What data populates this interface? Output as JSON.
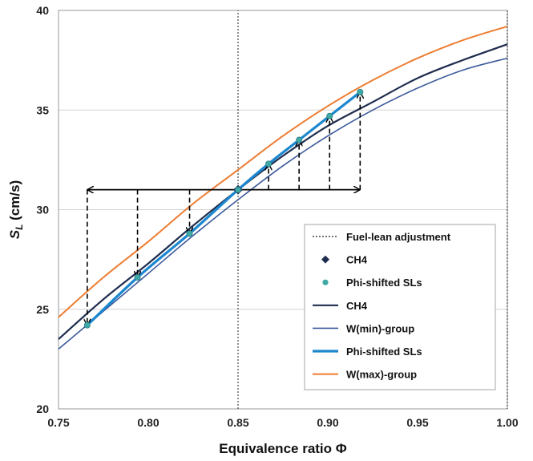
{
  "chart_data": {
    "type": "line",
    "xlabel": "Equivalence ratio Φ",
    "ylabel_main": "S",
    "ylabel_sub": "L",
    "ylabel_unit": " (cm/s)",
    "xlim": [
      0.75,
      1.0
    ],
    "ylim": [
      20,
      40
    ],
    "x_ticks": [
      "0.75",
      "0.80",
      "0.85",
      "0.90",
      "0.95",
      "1.00"
    ],
    "y_ticks": [
      "20",
      "25",
      "30",
      "35",
      "40"
    ],
    "grid": "horizontal",
    "legend_position": "inside-bottom-right",
    "series": [
      {
        "name": "Fuel-lean adjustment",
        "kind": "dotted-vline",
        "color": "#444444",
        "x": [
          0.85,
          0.85
        ],
        "y": [
          20,
          40
        ]
      },
      {
        "name": "CH4",
        "kind": "marker",
        "marker": "diamond",
        "color": "#1f2d4e",
        "x": [
          0.85
        ],
        "y": [
          31.0
        ]
      },
      {
        "name": "Phi-shifted SLs",
        "kind": "marker",
        "marker": "circle",
        "color": "#3fa9a5",
        "x": [
          0.766,
          0.794,
          0.823,
          0.85,
          0.867,
          0.884,
          0.901,
          0.918
        ],
        "y": [
          24.2,
          26.6,
          28.8,
          31.0,
          32.3,
          33.5,
          34.7,
          35.9
        ]
      },
      {
        "name": "CH4",
        "kind": "line",
        "color": "#1f2d4e",
        "x": [
          0.75,
          0.775,
          0.8,
          0.825,
          0.85,
          0.875,
          0.9,
          0.925,
          0.95,
          0.975,
          1.0
        ],
        "y": [
          23.5,
          25.5,
          27.3,
          29.2,
          31.0,
          32.7,
          34.2,
          35.4,
          36.6,
          37.5,
          38.3
        ]
      },
      {
        "name": "W(min)-group",
        "kind": "line",
        "color": "#3c5a9a",
        "x": [
          0.75,
          0.775,
          0.8,
          0.825,
          0.85,
          0.875,
          0.9,
          0.925,
          0.95,
          0.975,
          1.0
        ],
        "y": [
          23.0,
          24.9,
          26.8,
          28.7,
          30.5,
          32.2,
          33.7,
          35.0,
          36.1,
          37.0,
          37.6
        ]
      },
      {
        "name": "Phi-shifted SLs",
        "kind": "line",
        "color": "#1c87cf",
        "x": [
          0.766,
          0.794,
          0.823,
          0.85,
          0.867,
          0.884,
          0.901,
          0.918
        ],
        "y": [
          24.2,
          26.6,
          28.8,
          31.0,
          32.3,
          33.5,
          34.7,
          35.9
        ]
      },
      {
        "name": "W(max)-group",
        "kind": "line",
        "color": "#ed7d31",
        "x": [
          0.75,
          0.775,
          0.8,
          0.825,
          0.85,
          0.875,
          0.9,
          0.925,
          0.95,
          0.975,
          1.0
        ],
        "y": [
          24.6,
          26.6,
          28.4,
          30.3,
          32.0,
          33.7,
          35.2,
          36.5,
          37.6,
          38.5,
          39.2
        ]
      }
    ],
    "annotations": {
      "horizontal_arrow": {
        "y": 31.0,
        "x_from": 0.766,
        "x_to": 0.918
      },
      "vertical_arrows": [
        {
          "x": 0.766,
          "y_from": 31.0,
          "y_to": 24.2
        },
        {
          "x": 0.794,
          "y_from": 31.0,
          "y_to": 26.6
        },
        {
          "x": 0.823,
          "y_from": 31.0,
          "y_to": 28.8
        },
        {
          "x": 0.867,
          "y_from": 31.0,
          "y_to": 32.3
        },
        {
          "x": 0.884,
          "y_from": 31.0,
          "y_to": 33.5
        },
        {
          "x": 0.901,
          "y_from": 31.0,
          "y_to": 34.7
        },
        {
          "x": 0.918,
          "y_from": 31.0,
          "y_to": 35.9
        }
      ]
    }
  }
}
